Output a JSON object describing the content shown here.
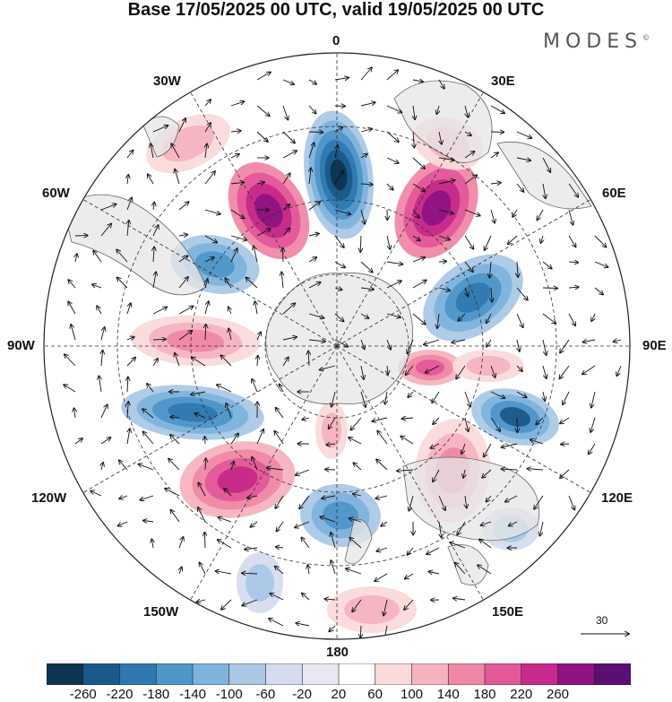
{
  "title": "Base 17/05/2025 00 UTC, valid 19/05/2025 00 UTC",
  "brand": "MODES",
  "brand_mark": "©",
  "lon_labels": {
    "n0": "0",
    "n30e": "30E",
    "n60e": "60E",
    "n90e": "90E",
    "n120e": "120E",
    "n150e": "150E",
    "n180": "180",
    "n150w": "150W",
    "n120w": "120W",
    "n90w": "90W",
    "n60w": "60W",
    "n30w": "30W"
  },
  "ref_vector_label": "30",
  "colorbar": {
    "ticks": [
      "-260",
      "-220",
      "-180",
      "-140",
      "-100",
      "-60",
      "-20",
      "20",
      "60",
      "100",
      "140",
      "180",
      "220",
      "260"
    ],
    "colors": [
      "#0d3552",
      "#1a5a8a",
      "#2f78b0",
      "#4f96c8",
      "#7fb3dc",
      "#aac8e6",
      "#d6dcef",
      "#e9e7f3",
      "#ffffff",
      "#fadada",
      "#f6b3bf",
      "#ef88a6",
      "#e2599a",
      "#c62a8a",
      "#8f1382",
      "#5a0f72"
    ]
  },
  "colors": {
    "land": "#e6e6e6",
    "coast": "#666666",
    "frame": "#222222"
  }
}
